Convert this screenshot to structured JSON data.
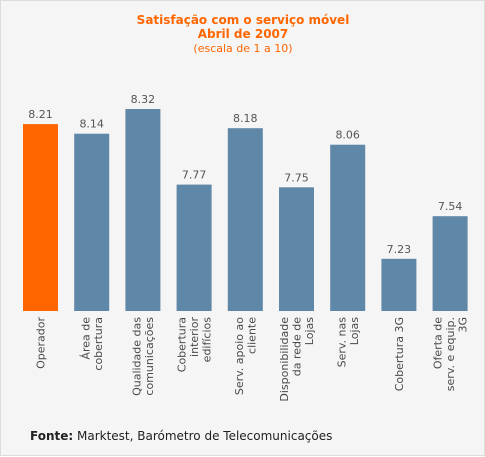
{
  "chart_data": {
    "type": "bar",
    "title": "Satisfação com o serviço móvel",
    "subtitle": "Abril de 2007",
    "note": "(escala de 1 a 10)",
    "categories": [
      [
        "Operador"
      ],
      [
        "Área de",
        "cobertura"
      ],
      [
        "Qualidade das",
        "comunicações"
      ],
      [
        "Cobertura",
        "interior",
        "edifícios"
      ],
      [
        "Serv. apoio ao",
        "cliente"
      ],
      [
        "Disponibilidade",
        "da rede de",
        "Lojas"
      ],
      [
        "Serv. nas",
        "Lojas"
      ],
      [
        "Cobertura 3G"
      ],
      [
        "Oferta de",
        "serv. e equip.",
        "3G"
      ]
    ],
    "values": [
      8.21,
      8.14,
      8.32,
      7.77,
      8.18,
      7.75,
      8.06,
      7.23,
      7.54
    ],
    "value_labels": [
      "8.21",
      "8.14",
      "8.32",
      "7.77",
      "8.18",
      "7.75",
      "8.06",
      "7.23",
      "7.54"
    ],
    "highlight_index": 0,
    "colors": {
      "highlight": "#ff6600",
      "bar": "#5f87a8",
      "title": "#ff6600"
    },
    "ylim": [
      6.85,
      8.32
    ],
    "grid": false,
    "legend": "none"
  },
  "source": {
    "prefix": "Fonte:",
    "text": "Marktest, Barómetro de Telecomunicações"
  }
}
